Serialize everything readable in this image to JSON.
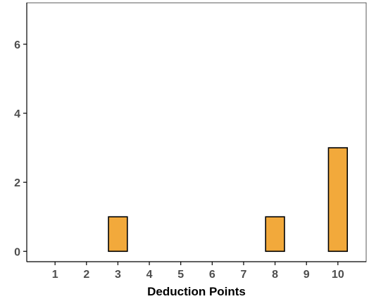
{
  "chart_data": {
    "type": "bar",
    "x_ticks": [
      1,
      2,
      3,
      4,
      5,
      6,
      7,
      8,
      9,
      10
    ],
    "categories": [
      3,
      8,
      10
    ],
    "values": [
      1,
      1,
      3
    ],
    "xlabel": "Deduction Points",
    "ylabel": "",
    "xlim": [
      0.1,
      10.9
    ],
    "ylim": [
      -0.3,
      7.2
    ],
    "y_ticks": [
      0,
      2,
      4,
      6
    ],
    "grid": false,
    "legend": "none",
    "colors": {
      "bar_fill": "#F2A93B",
      "bar_stroke": "#000000",
      "axis": "#000000",
      "frame": "#5a5a5a",
      "tick_text": "#4d4d4d",
      "label_text": "#000000"
    }
  }
}
